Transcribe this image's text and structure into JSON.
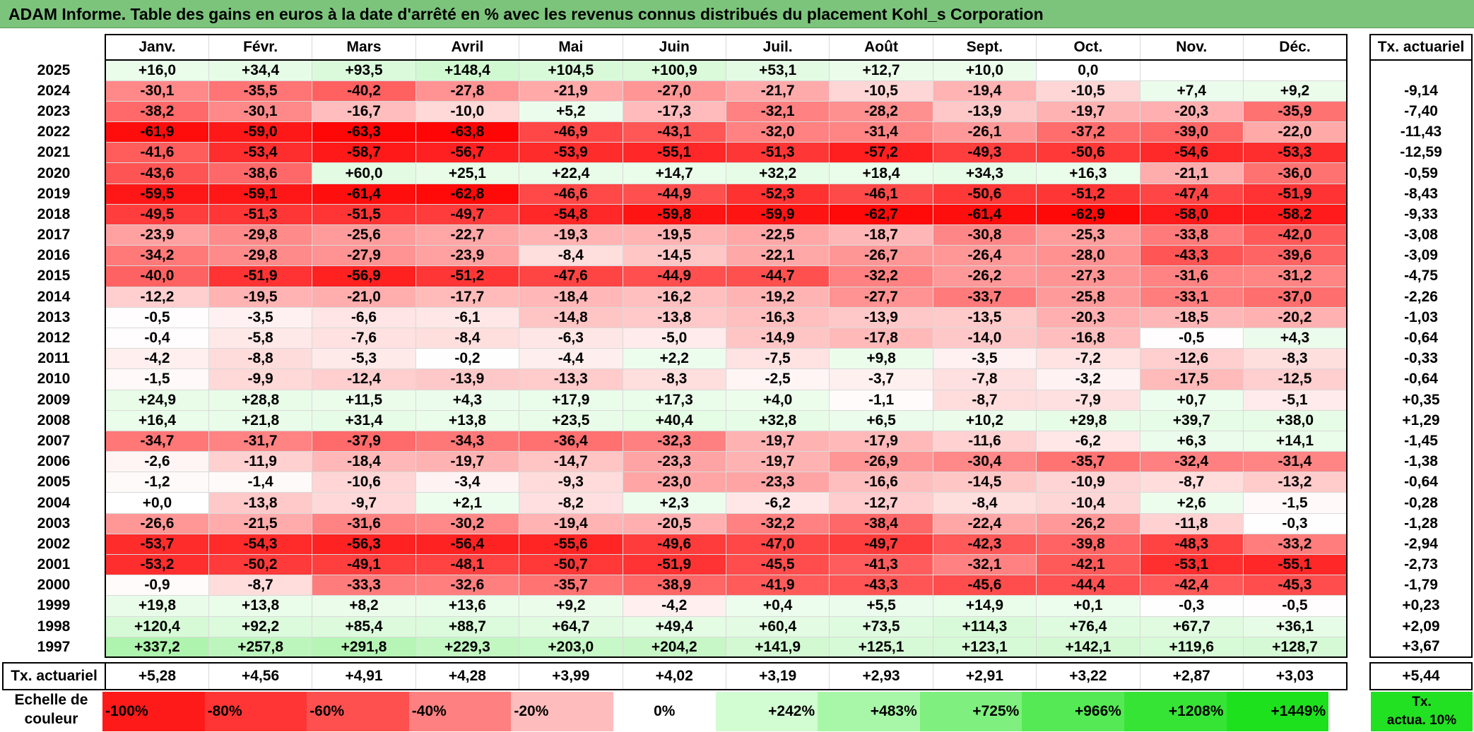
{
  "title": "ADAM Informe. Table des gains en euros à la date d'arrêté en % avec les revenus connus distribués du placement Kohl_s Corporation",
  "months": [
    "Janv.",
    "Févr.",
    "Mars",
    "Avril",
    "Mai",
    "Juin",
    "Juil.",
    "Août",
    "Sept.",
    "Oct.",
    "Nov.",
    "Déc."
  ],
  "side_header": "Tx. actuariel",
  "rows": [
    {
      "year": "2025",
      "values": [
        "+16,0",
        "+34,4",
        "+93,5",
        "+148,4",
        "+104,5",
        "+100,9",
        "+53,1",
        "+12,7",
        "+10,0",
        "0,0",
        "",
        ""
      ],
      "tx": ""
    },
    {
      "year": "2024",
      "values": [
        "-30,1",
        "-35,5",
        "-40,2",
        "-27,8",
        "-21,9",
        "-27,0",
        "-21,7",
        "-10,5",
        "-19,4",
        "-10,5",
        "+7,4",
        "+9,2"
      ],
      "tx": "-9,14"
    },
    {
      "year": "2023",
      "values": [
        "-38,2",
        "-30,1",
        "-16,7",
        "-10,0",
        "+5,2",
        "-17,3",
        "-32,1",
        "-28,2",
        "-13,9",
        "-19,7",
        "-20,3",
        "-35,9"
      ],
      "tx": "-7,40"
    },
    {
      "year": "2022",
      "values": [
        "-61,9",
        "-59,0",
        "-63,3",
        "-63,8",
        "-46,9",
        "-43,1",
        "-32,0",
        "-31,4",
        "-26,1",
        "-37,2",
        "-39,0",
        "-22,0"
      ],
      "tx": "-11,43"
    },
    {
      "year": "2021",
      "values": [
        "-41,6",
        "-53,4",
        "-58,7",
        "-56,7",
        "-53,9",
        "-55,1",
        "-51,3",
        "-57,2",
        "-49,3",
        "-50,6",
        "-54,6",
        "-53,3"
      ],
      "tx": "-12,59"
    },
    {
      "year": "2020",
      "values": [
        "-43,6",
        "-38,6",
        "+60,0",
        "+25,1",
        "+22,4",
        "+14,7",
        "+32,2",
        "+18,4",
        "+34,3",
        "+16,3",
        "-21,1",
        "-36,0"
      ],
      "tx": "-0,59"
    },
    {
      "year": "2019",
      "values": [
        "-59,5",
        "-59,1",
        "-61,4",
        "-62,8",
        "-46,6",
        "-44,9",
        "-52,3",
        "-46,1",
        "-50,6",
        "-51,2",
        "-47,4",
        "-51,9"
      ],
      "tx": "-8,43"
    },
    {
      "year": "2018",
      "values": [
        "-49,5",
        "-51,3",
        "-51,5",
        "-49,7",
        "-54,8",
        "-59,8",
        "-59,9",
        "-62,7",
        "-61,4",
        "-62,9",
        "-58,0",
        "-58,2"
      ],
      "tx": "-9,33"
    },
    {
      "year": "2017",
      "values": [
        "-23,9",
        "-29,8",
        "-25,6",
        "-22,7",
        "-19,3",
        "-19,5",
        "-22,5",
        "-18,7",
        "-30,8",
        "-25,3",
        "-33,8",
        "-42,0"
      ],
      "tx": "-3,08"
    },
    {
      "year": "2016",
      "values": [
        "-34,2",
        "-29,8",
        "-27,9",
        "-23,9",
        "-8,4",
        "-14,5",
        "-22,1",
        "-26,7",
        "-26,4",
        "-28,0",
        "-43,3",
        "-39,6"
      ],
      "tx": "-3,09"
    },
    {
      "year": "2015",
      "values": [
        "-40,0",
        "-51,9",
        "-56,9",
        "-51,2",
        "-47,6",
        "-44,9",
        "-44,7",
        "-32,2",
        "-26,2",
        "-27,3",
        "-31,6",
        "-31,2"
      ],
      "tx": "-4,75"
    },
    {
      "year": "2014",
      "values": [
        "-12,2",
        "-19,5",
        "-21,0",
        "-17,7",
        "-18,4",
        "-16,2",
        "-19,2",
        "-27,7",
        "-33,7",
        "-25,8",
        "-33,1",
        "-37,0"
      ],
      "tx": "-2,26"
    },
    {
      "year": "2013",
      "values": [
        "-0,5",
        "-3,5",
        "-6,6",
        "-6,1",
        "-14,8",
        "-13,8",
        "-16,3",
        "-13,9",
        "-13,5",
        "-20,3",
        "-18,5",
        "-20,2"
      ],
      "tx": "-1,03"
    },
    {
      "year": "2012",
      "values": [
        "-0,4",
        "-5,8",
        "-7,6",
        "-8,4",
        "-6,3",
        "-5,0",
        "-14,9",
        "-17,8",
        "-14,0",
        "-16,8",
        "-0,5",
        "+4,3"
      ],
      "tx": "-0,64"
    },
    {
      "year": "2011",
      "values": [
        "-4,2",
        "-8,8",
        "-5,3",
        "-0,2",
        "-4,4",
        "+2,2",
        "-7,5",
        "+9,8",
        "-3,5",
        "-7,2",
        "-12,6",
        "-8,3"
      ],
      "tx": "-0,33"
    },
    {
      "year": "2010",
      "values": [
        "-1,5",
        "-9,9",
        "-12,4",
        "-13,9",
        "-13,3",
        "-8,3",
        "-2,5",
        "-3,7",
        "-7,8",
        "-3,2",
        "-17,5",
        "-12,5"
      ],
      "tx": "-0,64"
    },
    {
      "year": "2009",
      "values": [
        "+24,9",
        "+28,8",
        "+11,5",
        "+4,3",
        "+17,9",
        "+17,3",
        "+4,0",
        "-1,1",
        "-8,7",
        "-7,9",
        "+0,7",
        "-5,1"
      ],
      "tx": "+0,35"
    },
    {
      "year": "2008",
      "values": [
        "+16,4",
        "+21,8",
        "+31,4",
        "+13,8",
        "+23,5",
        "+40,4",
        "+32,8",
        "+6,5",
        "+10,2",
        "+29,8",
        "+39,7",
        "+38,0"
      ],
      "tx": "+1,29"
    },
    {
      "year": "2007",
      "values": [
        "-34,7",
        "-31,7",
        "-37,9",
        "-34,3",
        "-36,4",
        "-32,3",
        "-19,7",
        "-17,9",
        "-11,6",
        "-6,2",
        "+6,3",
        "+14,1"
      ],
      "tx": "-1,45"
    },
    {
      "year": "2006",
      "values": [
        "-2,6",
        "-11,9",
        "-18,4",
        "-19,7",
        "-14,7",
        "-23,3",
        "-19,7",
        "-26,9",
        "-30,4",
        "-35,7",
        "-32,4",
        "-31,4"
      ],
      "tx": "-1,38"
    },
    {
      "year": "2005",
      "values": [
        "-1,2",
        "-1,4",
        "-10,6",
        "-3,4",
        "-9,3",
        "-23,0",
        "-23,3",
        "-16,6",
        "-14,5",
        "-10,9",
        "-8,7",
        "-13,2"
      ],
      "tx": "-0,64"
    },
    {
      "year": "2004",
      "values": [
        "+0,0",
        "-13,8",
        "-9,7",
        "+2,1",
        "-8,2",
        "+2,3",
        "-6,2",
        "-12,7",
        "-8,4",
        "-10,4",
        "+2,6",
        "-1,5"
      ],
      "tx": "-0,28"
    },
    {
      "year": "2003",
      "values": [
        "-26,6",
        "-21,5",
        "-31,6",
        "-30,2",
        "-19,4",
        "-20,5",
        "-32,2",
        "-38,4",
        "-22,4",
        "-26,2",
        "-11,8",
        "-0,3"
      ],
      "tx": "-1,28"
    },
    {
      "year": "2002",
      "values": [
        "-53,7",
        "-54,3",
        "-56,3",
        "-56,4",
        "-55,6",
        "-49,6",
        "-47,0",
        "-49,7",
        "-42,3",
        "-39,8",
        "-48,3",
        "-33,2"
      ],
      "tx": "-2,94"
    },
    {
      "year": "2001",
      "values": [
        "-53,2",
        "-50,2",
        "-49,1",
        "-48,1",
        "-50,7",
        "-51,9",
        "-45,5",
        "-41,3",
        "-32,1",
        "-42,1",
        "-53,1",
        "-55,1"
      ],
      "tx": "-2,73"
    },
    {
      "year": "2000",
      "values": [
        "-0,9",
        "-8,7",
        "-33,3",
        "-32,6",
        "-35,7",
        "-38,9",
        "-41,9",
        "-43,3",
        "-45,6",
        "-44,4",
        "-42,4",
        "-45,3"
      ],
      "tx": "-1,79"
    },
    {
      "year": "1999",
      "values": [
        "+19,8",
        "+13,8",
        "+8,2",
        "+13,6",
        "+9,2",
        "-4,2",
        "+0,4",
        "+5,5",
        "+14,9",
        "+0,1",
        "-0,3",
        "-0,5"
      ],
      "tx": "+0,23"
    },
    {
      "year": "1998",
      "values": [
        "+120,4",
        "+92,2",
        "+85,4",
        "+88,7",
        "+64,7",
        "+49,4",
        "+60,4",
        "+73,5",
        "+114,3",
        "+76,4",
        "+67,7",
        "+36,1"
      ],
      "tx": "+2,09"
    },
    {
      "year": "1997",
      "values": [
        "+337,2",
        "+257,8",
        "+291,8",
        "+229,3",
        "+203,0",
        "+204,2",
        "+141,9",
        "+125,1",
        "+123,1",
        "+142,1",
        "+119,6",
        "+128,7"
      ],
      "tx": "+3,67"
    }
  ],
  "tx_row": {
    "label": "Tx. actuariel",
    "values": [
      "+5,28",
      "+4,56",
      "+4,91",
      "+4,28",
      "+3,99",
      "+4,02",
      "+3,19",
      "+2,93",
      "+2,91",
      "+3,22",
      "+2,87",
      "+3,03"
    ],
    "total": "+5,44"
  },
  "scale": {
    "label_line1": "Echelle de",
    "label_line2": "couleur",
    "items": [
      {
        "label": "-100%",
        "color": "#ff1a1a",
        "kind": "neg"
      },
      {
        "label": "-80%",
        "color": "#ff3535",
        "kind": "neg"
      },
      {
        "label": "-60%",
        "color": "#ff5050",
        "kind": "neg"
      },
      {
        "label": "-40%",
        "color": "#ff8080",
        "kind": "neg"
      },
      {
        "label": "-20%",
        "color": "#ffbcbc",
        "kind": "neg"
      },
      {
        "label": "0%",
        "color": "#ffffff",
        "kind": "zero"
      },
      {
        "label": "+242%",
        "color": "#d2fcd2",
        "kind": "pos"
      },
      {
        "label": "+483%",
        "color": "#a8f7a8",
        "kind": "pos"
      },
      {
        "label": "+725%",
        "color": "#7ff07f",
        "kind": "pos"
      },
      {
        "label": "+966%",
        "color": "#55ea55",
        "kind": "pos"
      },
      {
        "label": "+1208%",
        "color": "#36e436",
        "kind": "pos"
      },
      {
        "label": "+1449%",
        "color": "#1ee11e",
        "kind": "pos"
      }
    ],
    "tx_line1": "Tx.",
    "tx_line2": "actua. 10%",
    "tx_color": "#22e122"
  }
}
